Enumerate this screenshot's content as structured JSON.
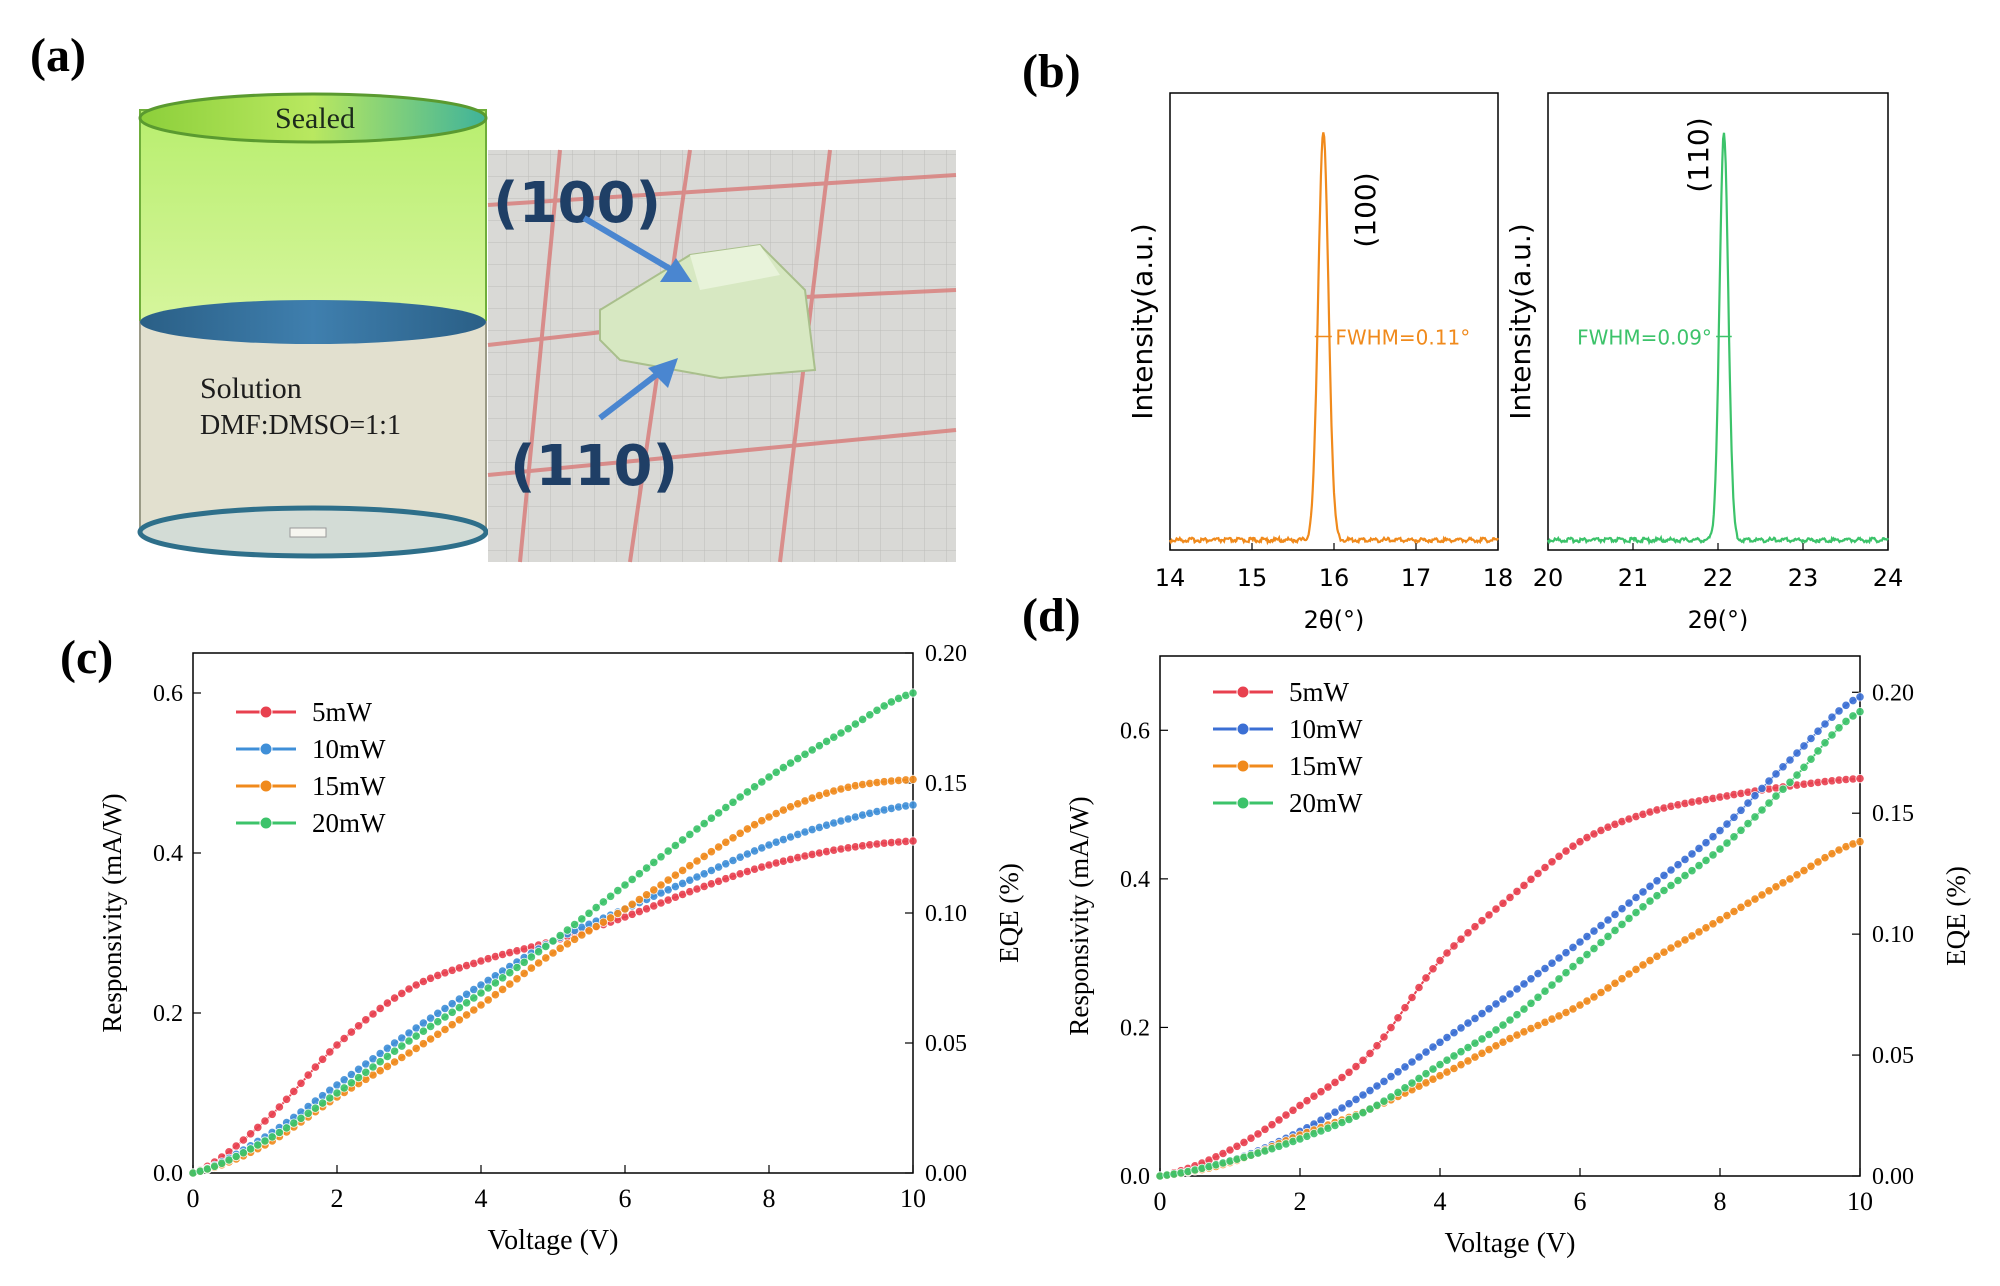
{
  "panels": {
    "a": {
      "label": "(a)",
      "top_label": "Sealed",
      "solution_label": "Solution",
      "solvent_label": "DMF:DMSO=1:1",
      "facet_top": "(100)",
      "facet_bottom": "(110)"
    },
    "b": {
      "label": "(b)"
    },
    "c": {
      "label": "(c)"
    },
    "d": {
      "label": "(d)"
    }
  },
  "colors": {
    "orange": "#f08a1c",
    "green": "#3cc36a",
    "red": "#e8404f",
    "blue": "#3f8fd8",
    "blue_dark": "#3b6fd4",
    "navy": "#1f3f66",
    "arrow": "#4a86d0"
  },
  "chart_data": [
    {
      "id": "b1",
      "type": "line",
      "xlabel": "2θ(°)",
      "ylabel": "Intensity(a.u.)",
      "xlim": [
        14,
        18
      ],
      "xticks": [
        14,
        15,
        16,
        17,
        18
      ],
      "peak_center": 15.87,
      "peak_fwhm": 0.11,
      "peak_label": "(100)",
      "fwhm_label": "FWHM=0.11°",
      "series": [
        {
          "name": "(100)",
          "color": "orange"
        }
      ]
    },
    {
      "id": "b2",
      "type": "line",
      "xlabel": "2θ(°)",
      "ylabel": "Intensity(a.u.)",
      "xlim": [
        20,
        24
      ],
      "xticks": [
        20,
        21,
        22,
        23,
        24
      ],
      "peak_center": 22.07,
      "peak_fwhm": 0.09,
      "peak_label": "(110)",
      "fwhm_label": "FWHM=0.09°",
      "series": [
        {
          "name": "(110)",
          "color": "green"
        }
      ]
    },
    {
      "id": "c",
      "type": "scatter",
      "xlabel": "Voltage (V)",
      "ylabel": "Responsivity (mA/W)",
      "y2label": "EQE (%)",
      "xlim": [
        0,
        10
      ],
      "ylim": [
        0,
        0.65
      ],
      "y2lim": [
        0,
        0.2
      ],
      "xticks": [
        0,
        2,
        4,
        6,
        8,
        10
      ],
      "yticks": [
        0.0,
        0.2,
        0.4,
        0.6
      ],
      "xtick_labels": [
        "0",
        "2",
        "4",
        "6",
        "8",
        "10"
      ],
      "ytick_labels": [
        "0.0",
        "0.2",
        "0.4",
        "0.6"
      ],
      "y2ticks": [
        "0.00",
        "0.05",
        "0.10",
        "0.15",
        "0.20"
      ],
      "legend": "top-left",
      "series": [
        {
          "name": "5mW",
          "color": "red",
          "x": [
            0,
            1,
            2,
            3,
            4,
            5,
            6,
            7,
            8,
            9,
            10
          ],
          "values": [
            0,
            0.065,
            0.16,
            0.23,
            0.265,
            0.29,
            0.32,
            0.355,
            0.385,
            0.405,
            0.415
          ]
        },
        {
          "name": "10mW",
          "color": "blue",
          "x": [
            0,
            1,
            2,
            3,
            4,
            5,
            6,
            7,
            8,
            9,
            10
          ],
          "values": [
            0,
            0.045,
            0.11,
            0.175,
            0.235,
            0.29,
            0.33,
            0.37,
            0.41,
            0.44,
            0.46
          ]
        },
        {
          "name": "15mW",
          "color": "orange",
          "x": [
            0,
            1,
            2,
            3,
            4,
            5,
            6,
            7,
            8,
            9,
            10
          ],
          "values": [
            0,
            0.035,
            0.095,
            0.15,
            0.21,
            0.275,
            0.33,
            0.39,
            0.445,
            0.48,
            0.492
          ]
        },
        {
          "name": "20mW",
          "color": "green",
          "x": [
            0,
            1,
            2,
            3,
            4,
            5,
            6,
            7,
            8,
            9,
            10
          ],
          "values": [
            0,
            0.04,
            0.1,
            0.165,
            0.225,
            0.29,
            0.36,
            0.43,
            0.495,
            0.55,
            0.6
          ]
        }
      ]
    },
    {
      "id": "d",
      "type": "scatter",
      "xlabel": "Voltage (V)",
      "ylabel": "Responsivity (mA/W)",
      "y2label": "EQE (%)",
      "xlim": [
        0,
        10
      ],
      "ylim": [
        0,
        0.7
      ],
      "y2lim": [
        0,
        0.215
      ],
      "xticks": [
        0,
        2,
        4,
        6,
        8,
        10
      ],
      "yticks": [
        0.0,
        0.2,
        0.4,
        0.6
      ],
      "xtick_labels": [
        "0",
        "2",
        "4",
        "6",
        "8",
        "10"
      ],
      "ytick_labels": [
        "0.0",
        "0.2",
        "0.4",
        "0.6"
      ],
      "y2ticks": [
        "0.00",
        "0.05",
        "0.10",
        "0.15",
        "0.20"
      ],
      "legend": "top-left",
      "series": [
        {
          "name": "5mW",
          "color": "red",
          "x": [
            0,
            1,
            2,
            3,
            4,
            5,
            6,
            7,
            8,
            9,
            10
          ],
          "values": [
            0,
            0.035,
            0.095,
            0.165,
            0.29,
            0.375,
            0.45,
            0.49,
            0.51,
            0.525,
            0.535
          ]
        },
        {
          "name": "10mW",
          "color": "blue_dark",
          "x": [
            0,
            1,
            2,
            3,
            4,
            5,
            6,
            7,
            8,
            9,
            10
          ],
          "values": [
            0,
            0.02,
            0.06,
            0.115,
            0.18,
            0.245,
            0.315,
            0.39,
            0.465,
            0.56,
            0.645
          ]
        },
        {
          "name": "15mW",
          "color": "orange",
          "x": [
            0,
            1,
            2,
            3,
            4,
            5,
            6,
            7,
            8,
            9,
            10
          ],
          "values": [
            0,
            0.018,
            0.055,
            0.09,
            0.135,
            0.185,
            0.23,
            0.29,
            0.345,
            0.4,
            0.45
          ]
        },
        {
          "name": "20mW",
          "color": "green",
          "x": [
            0,
            1,
            2,
            3,
            4,
            5,
            6,
            7,
            8,
            9,
            10
          ],
          "values": [
            0,
            0.02,
            0.05,
            0.09,
            0.15,
            0.21,
            0.29,
            0.37,
            0.44,
            0.53,
            0.625
          ]
        }
      ]
    }
  ]
}
